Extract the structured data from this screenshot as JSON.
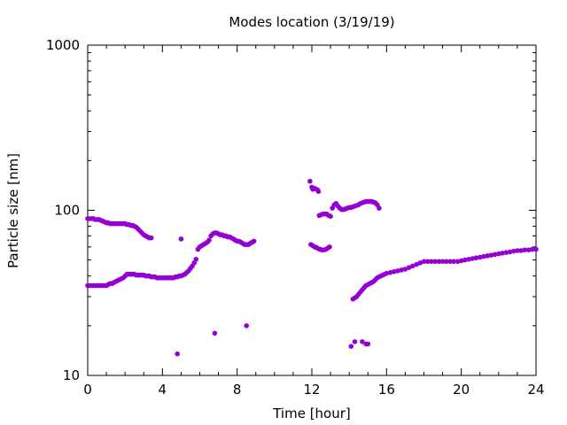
{
  "chart_data": {
    "type": "scatter",
    "title": "Modes location (3/19/19)",
    "xlabel": "Time [hour]",
    "ylabel": "Particle size [nm]",
    "xlim": [
      0,
      24
    ],
    "ylim": [
      10,
      1000
    ],
    "yscale": "log",
    "grid": false,
    "legend": "none",
    "marker_color": "#9400d3",
    "x_ticks": [
      0,
      4,
      8,
      12,
      16,
      20,
      24
    ],
    "x_tick_labels": [
      "0",
      "4",
      "8",
      "12",
      "16",
      "20",
      "24"
    ],
    "y_ticks": [
      10,
      100,
      1000
    ],
    "y_tick_labels": [
      "10",
      "100",
      "1000"
    ],
    "series": [
      {
        "points": [
          [
            0.0,
            89
          ],
          [
            0.1,
            89
          ],
          [
            0.2,
            89
          ],
          [
            0.3,
            89
          ],
          [
            0.4,
            88
          ],
          [
            0.5,
            88
          ],
          [
            0.6,
            88
          ],
          [
            0.7,
            87
          ],
          [
            0.8,
            86
          ],
          [
            0.9,
            85
          ],
          [
            1.0,
            84
          ],
          [
            1.1,
            84
          ],
          [
            1.2,
            83
          ],
          [
            1.3,
            83
          ],
          [
            1.4,
            83
          ],
          [
            1.5,
            83
          ],
          [
            1.6,
            83
          ],
          [
            1.7,
            83
          ],
          [
            1.8,
            83
          ],
          [
            1.9,
            83
          ],
          [
            2.0,
            83
          ],
          [
            2.1,
            82
          ],
          [
            2.2,
            82
          ],
          [
            2.3,
            81
          ],
          [
            2.4,
            81
          ],
          [
            2.5,
            80
          ],
          [
            2.6,
            79
          ],
          [
            2.7,
            77
          ],
          [
            2.8,
            75
          ],
          [
            2.9,
            73
          ],
          [
            3.0,
            71
          ],
          [
            3.1,
            70
          ],
          [
            3.2,
            69
          ],
          [
            3.3,
            68
          ],
          [
            3.4,
            68
          ],
          [
            0.0,
            35
          ],
          [
            0.1,
            35
          ],
          [
            0.2,
            35
          ],
          [
            0.3,
            35
          ],
          [
            0.4,
            35
          ],
          [
            0.5,
            35
          ],
          [
            0.6,
            35
          ],
          [
            0.7,
            35
          ],
          [
            0.8,
            35
          ],
          [
            0.9,
            35
          ],
          [
            1.0,
            35
          ],
          [
            1.1,
            35.5
          ],
          [
            1.2,
            36
          ],
          [
            1.3,
            36
          ],
          [
            1.4,
            36.5
          ],
          [
            1.5,
            37
          ],
          [
            1.6,
            37.5
          ],
          [
            1.7,
            38
          ],
          [
            1.8,
            38.5
          ],
          [
            1.9,
            39
          ],
          [
            2.0,
            40
          ],
          [
            2.1,
            41
          ],
          [
            2.2,
            41
          ],
          [
            2.3,
            41
          ],
          [
            2.4,
            41
          ],
          [
            2.5,
            41
          ],
          [
            2.6,
            40.5
          ],
          [
            2.7,
            40.5
          ],
          [
            2.8,
            40.5
          ],
          [
            2.9,
            40.5
          ],
          [
            3.0,
            40.5
          ],
          [
            3.1,
            40
          ],
          [
            3.2,
            40
          ],
          [
            3.3,
            40
          ],
          [
            3.4,
            39.5
          ],
          [
            3.5,
            39.5
          ],
          [
            3.6,
            39.5
          ],
          [
            3.7,
            39
          ],
          [
            3.8,
            39
          ],
          [
            3.9,
            39
          ],
          [
            4.0,
            39
          ],
          [
            4.1,
            39
          ],
          [
            4.2,
            39
          ],
          [
            4.3,
            39
          ],
          [
            4.4,
            39
          ],
          [
            4.5,
            39
          ],
          [
            4.6,
            39
          ],
          [
            4.7,
            39.5
          ],
          [
            4.8,
            39.5
          ],
          [
            4.9,
            40
          ],
          [
            5.0,
            40
          ],
          [
            5.1,
            40.5
          ],
          [
            5.2,
            41
          ],
          [
            5.3,
            42
          ],
          [
            5.4,
            43
          ],
          [
            5.5,
            44.5
          ],
          [
            5.6,
            46
          ],
          [
            5.7,
            48
          ],
          [
            5.8,
            50.5
          ],
          [
            5.9,
            58
          ],
          [
            6.0,
            60
          ],
          [
            6.1,
            61
          ],
          [
            6.2,
            62
          ],
          [
            6.3,
            63
          ],
          [
            6.4,
            64
          ],
          [
            6.5,
            66
          ],
          [
            6.6,
            70
          ],
          [
            6.7,
            72
          ],
          [
            6.8,
            73
          ],
          [
            6.9,
            73
          ],
          [
            7.0,
            72
          ],
          [
            7.1,
            71
          ],
          [
            7.2,
            71
          ],
          [
            7.3,
            70
          ],
          [
            7.4,
            70
          ],
          [
            7.5,
            69
          ],
          [
            7.6,
            69
          ],
          [
            7.7,
            68
          ],
          [
            7.8,
            67
          ],
          [
            7.9,
            66
          ],
          [
            8.0,
            65
          ],
          [
            8.1,
            65
          ],
          [
            8.2,
            64
          ],
          [
            8.3,
            63
          ],
          [
            8.4,
            62
          ],
          [
            8.5,
            62
          ],
          [
            8.6,
            62
          ],
          [
            8.7,
            63
          ],
          [
            8.8,
            64
          ],
          [
            8.9,
            65
          ],
          [
            4.8,
            13.5
          ],
          [
            5.0,
            67
          ],
          [
            6.8,
            18
          ],
          [
            8.5,
            20
          ],
          [
            11.9,
            150
          ],
          [
            12.0,
            138
          ],
          [
            12.05,
            134
          ],
          [
            12.1,
            136
          ],
          [
            12.2,
            135
          ],
          [
            12.3,
            133
          ],
          [
            12.35,
            130
          ],
          [
            11.95,
            62
          ],
          [
            12.05,
            61
          ],
          [
            12.15,
            60
          ],
          [
            12.25,
            59.5
          ],
          [
            12.35,
            58.5
          ],
          [
            12.45,
            58
          ],
          [
            12.55,
            57.5
          ],
          [
            12.65,
            57.5
          ],
          [
            12.75,
            58
          ],
          [
            12.85,
            59
          ],
          [
            12.95,
            60
          ],
          [
            12.4,
            93
          ],
          [
            12.5,
            94
          ],
          [
            12.6,
            95
          ],
          [
            12.7,
            95
          ],
          [
            12.8,
            95
          ],
          [
            12.9,
            93
          ],
          [
            13.0,
            92
          ],
          [
            13.1,
            103
          ],
          [
            13.2,
            108
          ],
          [
            13.3,
            110
          ],
          [
            13.4,
            106
          ],
          [
            13.5,
            103
          ],
          [
            13.6,
            101
          ],
          [
            13.7,
            101
          ],
          [
            13.8,
            102
          ],
          [
            13.9,
            103
          ],
          [
            14.0,
            104
          ],
          [
            14.1,
            104
          ],
          [
            14.2,
            105
          ],
          [
            14.3,
            106
          ],
          [
            14.4,
            107
          ],
          [
            14.5,
            108
          ],
          [
            14.6,
            110
          ],
          [
            14.7,
            111
          ],
          [
            14.8,
            112
          ],
          [
            14.9,
            113
          ],
          [
            15.0,
            113
          ],
          [
            15.1,
            113
          ],
          [
            15.2,
            113
          ],
          [
            15.3,
            112
          ],
          [
            15.4,
            111
          ],
          [
            15.5,
            108
          ],
          [
            15.6,
            103
          ],
          [
            14.1,
            15
          ],
          [
            14.3,
            16
          ],
          [
            14.7,
            16
          ],
          [
            14.9,
            15.5
          ],
          [
            15.0,
            15.5
          ],
          [
            14.2,
            29
          ],
          [
            14.3,
            29.5
          ],
          [
            14.4,
            30
          ],
          [
            14.5,
            31
          ],
          [
            14.6,
            32
          ],
          [
            14.7,
            33
          ],
          [
            14.8,
            34
          ],
          [
            14.9,
            35
          ],
          [
            15.0,
            35.5
          ],
          [
            15.1,
            36
          ],
          [
            15.2,
            36.5
          ],
          [
            15.3,
            37
          ],
          [
            15.4,
            38
          ],
          [
            15.5,
            39
          ],
          [
            15.6,
            39.5
          ],
          [
            15.7,
            40
          ],
          [
            15.8,
            40.5
          ],
          [
            15.9,
            41
          ],
          [
            16.0,
            41.5
          ],
          [
            16.2,
            42
          ],
          [
            16.4,
            42.5
          ],
          [
            16.6,
            43
          ],
          [
            16.8,
            43.5
          ],
          [
            17.0,
            44
          ],
          [
            17.2,
            45
          ],
          [
            17.4,
            46
          ],
          [
            17.6,
            47
          ],
          [
            17.8,
            48
          ],
          [
            18.0,
            49
          ],
          [
            18.2,
            49
          ],
          [
            18.4,
            49
          ],
          [
            18.6,
            49
          ],
          [
            18.8,
            49
          ],
          [
            19.0,
            49
          ],
          [
            19.2,
            49
          ],
          [
            19.4,
            49
          ],
          [
            19.6,
            49
          ],
          [
            19.8,
            49
          ],
          [
            20.0,
            49.5
          ],
          [
            20.2,
            50
          ],
          [
            20.4,
            50.5
          ],
          [
            20.6,
            51
          ],
          [
            20.8,
            51.5
          ],
          [
            21.0,
            52
          ],
          [
            21.2,
            52.5
          ],
          [
            21.4,
            53
          ],
          [
            21.6,
            53.5
          ],
          [
            21.8,
            54
          ],
          [
            22.0,
            54.5
          ],
          [
            22.2,
            55
          ],
          [
            22.4,
            55.5
          ],
          [
            22.6,
            56
          ],
          [
            22.8,
            56.5
          ],
          [
            23.0,
            57
          ],
          [
            23.2,
            57
          ],
          [
            23.4,
            57.5
          ],
          [
            23.6,
            57.5
          ],
          [
            23.8,
            58
          ],
          [
            24.0,
            58
          ]
        ]
      }
    ]
  }
}
